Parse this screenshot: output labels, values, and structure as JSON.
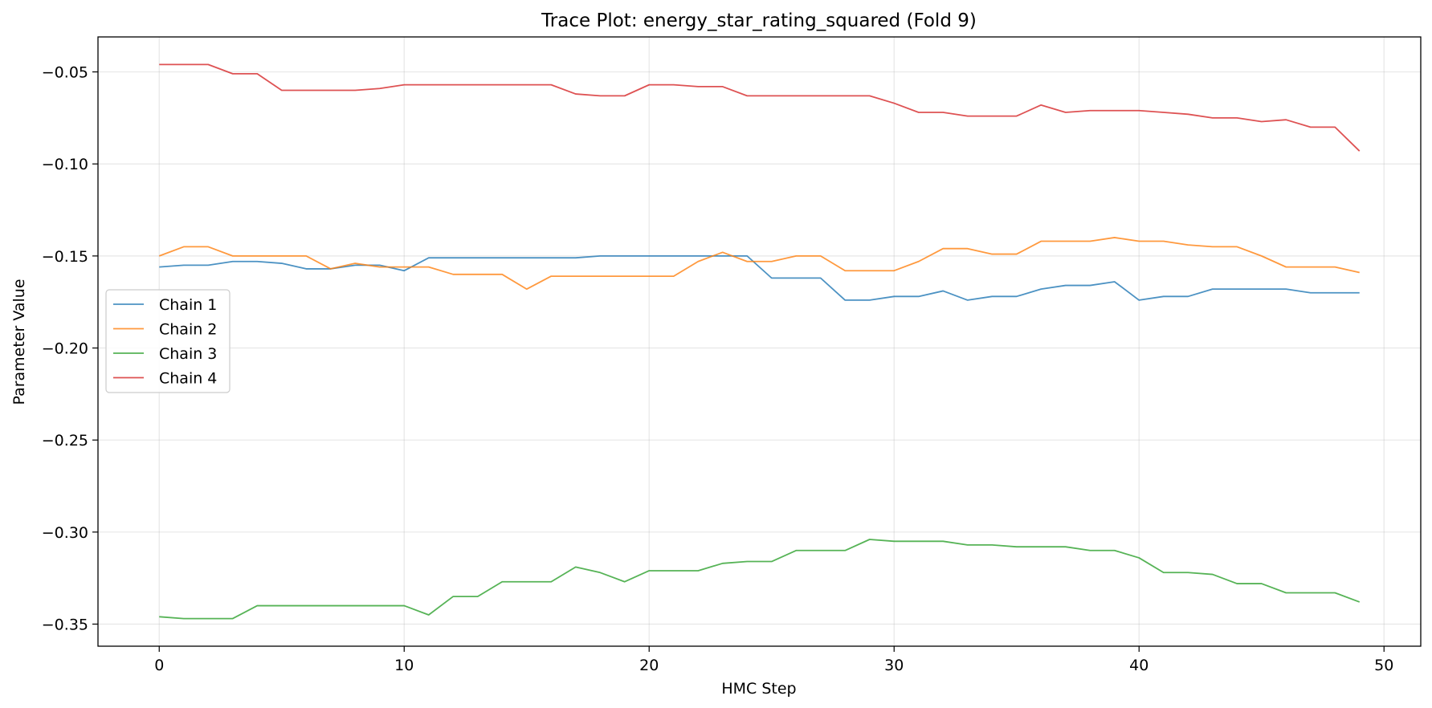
{
  "chart_data": {
    "type": "line",
    "title": "Trace Plot: energy_star_rating_squared (Fold 9)",
    "xlabel": "HMC Step",
    "ylabel": "Parameter Value",
    "xlim": [
      -2.5,
      51.5
    ],
    "ylim": [
      -0.362,
      -0.031
    ],
    "xticks": [
      0,
      10,
      20,
      30,
      40,
      50
    ],
    "xtick_labels": [
      "0",
      "10",
      "20",
      "30",
      "40",
      "50"
    ],
    "yticks": [
      -0.05,
      -0.1,
      -0.15,
      -0.2,
      -0.25,
      -0.3,
      -0.35
    ],
    "ytick_labels": [
      "−0.05",
      "−0.10",
      "−0.15",
      "−0.20",
      "−0.25",
      "−0.30",
      "−0.35"
    ],
    "grid": true,
    "legend_position": "center-left",
    "x": [
      0,
      1,
      2,
      3,
      4,
      5,
      6,
      7,
      8,
      9,
      10,
      11,
      12,
      13,
      14,
      15,
      16,
      17,
      18,
      19,
      20,
      21,
      22,
      23,
      24,
      25,
      26,
      27,
      28,
      29,
      30,
      31,
      32,
      33,
      34,
      35,
      36,
      37,
      38,
      39,
      40,
      41,
      42,
      43,
      44,
      45,
      46,
      47,
      48,
      49
    ],
    "series": [
      {
        "name": "Chain 1",
        "color": "#1f77b4",
        "values": [
          -0.156,
          -0.155,
          -0.155,
          -0.153,
          -0.153,
          -0.154,
          -0.157,
          -0.157,
          -0.155,
          -0.155,
          -0.158,
          -0.151,
          -0.151,
          -0.151,
          -0.151,
          -0.151,
          -0.151,
          -0.151,
          -0.15,
          -0.15,
          -0.15,
          -0.15,
          -0.15,
          -0.15,
          -0.15,
          -0.162,
          -0.162,
          -0.162,
          -0.174,
          -0.174,
          -0.172,
          -0.172,
          -0.169,
          -0.174,
          -0.172,
          -0.172,
          -0.168,
          -0.166,
          -0.166,
          -0.164,
          -0.174,
          -0.172,
          -0.172,
          -0.168,
          -0.168,
          -0.168,
          -0.168,
          -0.17,
          -0.17,
          -0.17
        ]
      },
      {
        "name": "Chain 2",
        "color": "#ff7f0e",
        "values": [
          -0.15,
          -0.145,
          -0.145,
          -0.15,
          -0.15,
          -0.15,
          -0.15,
          -0.157,
          -0.154,
          -0.156,
          -0.156,
          -0.156,
          -0.16,
          -0.16,
          -0.16,
          -0.168,
          -0.161,
          -0.161,
          -0.161,
          -0.161,
          -0.161,
          -0.161,
          -0.153,
          -0.148,
          -0.153,
          -0.153,
          -0.15,
          -0.15,
          -0.158,
          -0.158,
          -0.158,
          -0.153,
          -0.146,
          -0.146,
          -0.149,
          -0.149,
          -0.142,
          -0.142,
          -0.142,
          -0.14,
          -0.142,
          -0.142,
          -0.144,
          -0.145,
          -0.145,
          -0.15,
          -0.156,
          -0.156,
          -0.156,
          -0.159
        ]
      },
      {
        "name": "Chain 3",
        "color": "#2ca02c",
        "values": [
          -0.346,
          -0.347,
          -0.347,
          -0.347,
          -0.34,
          -0.34,
          -0.34,
          -0.34,
          -0.34,
          -0.34,
          -0.34,
          -0.345,
          -0.335,
          -0.335,
          -0.327,
          -0.327,
          -0.327,
          -0.319,
          -0.322,
          -0.327,
          -0.321,
          -0.321,
          -0.321,
          -0.317,
          -0.316,
          -0.316,
          -0.31,
          -0.31,
          -0.31,
          -0.304,
          -0.305,
          -0.305,
          -0.305,
          -0.307,
          -0.307,
          -0.308,
          -0.308,
          -0.308,
          -0.31,
          -0.31,
          -0.314,
          -0.322,
          -0.322,
          -0.323,
          -0.328,
          -0.328,
          -0.333,
          -0.333,
          -0.333,
          -0.338
        ]
      },
      {
        "name": "Chain 4",
        "color": "#d62728",
        "values": [
          -0.046,
          -0.046,
          -0.046,
          -0.051,
          -0.051,
          -0.06,
          -0.06,
          -0.06,
          -0.06,
          -0.059,
          -0.057,
          -0.057,
          -0.057,
          -0.057,
          -0.057,
          -0.057,
          -0.057,
          -0.062,
          -0.063,
          -0.063,
          -0.057,
          -0.057,
          -0.058,
          -0.058,
          -0.063,
          -0.063,
          -0.063,
          -0.063,
          -0.063,
          -0.063,
          -0.067,
          -0.072,
          -0.072,
          -0.074,
          -0.074,
          -0.074,
          -0.068,
          -0.072,
          -0.071,
          -0.071,
          -0.071,
          -0.072,
          -0.073,
          -0.075,
          -0.075,
          -0.077,
          -0.076,
          -0.08,
          -0.08,
          -0.093
        ]
      }
    ]
  }
}
